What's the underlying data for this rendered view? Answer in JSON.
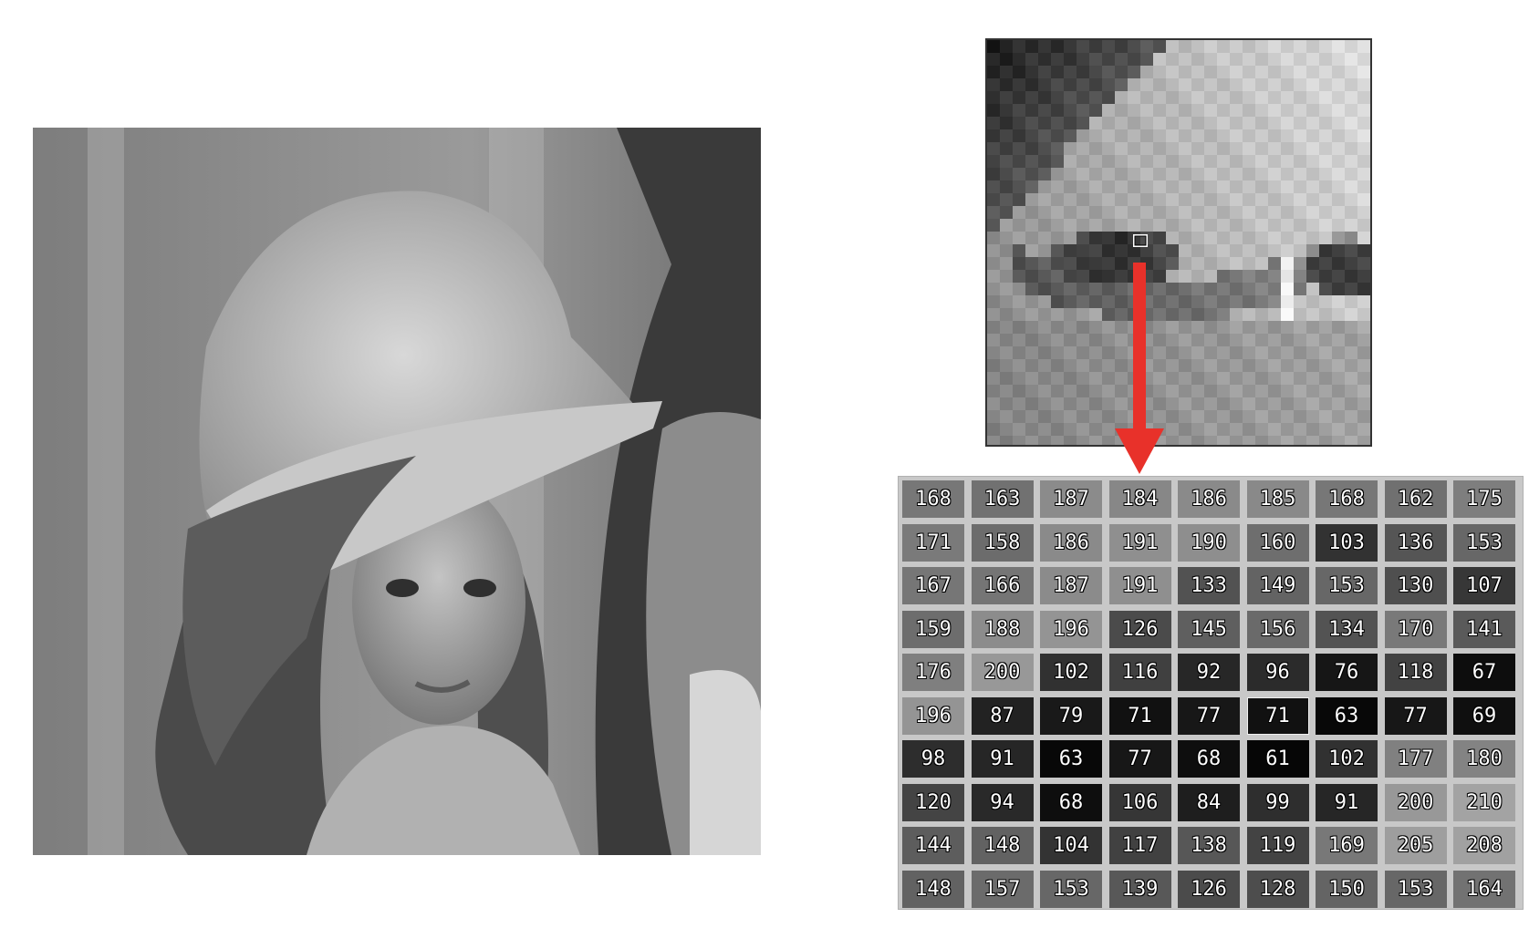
{
  "figure": {
    "photo_icon": "grayscale-portrait-photo",
    "zoom_icon": "zoomed-pixel-region",
    "arrow_color": "#e8312a",
    "marker_color": "#ffffff"
  },
  "pixel_grid": {
    "rows": [
      [
        168,
        163,
        187,
        184,
        186,
        185,
        168,
        162,
        175
      ],
      [
        171,
        158,
        186,
        191,
        190,
        160,
        103,
        136,
        153
      ],
      [
        167,
        166,
        187,
        191,
        133,
        149,
        153,
        130,
        107
      ],
      [
        159,
        188,
        196,
        126,
        145,
        156,
        134,
        170,
        141
      ],
      [
        176,
        200,
        102,
        116,
        92,
        96,
        76,
        118,
        67
      ],
      [
        196,
        87,
        79,
        71,
        77,
        71,
        63,
        77,
        69
      ],
      [
        98,
        91,
        63,
        77,
        68,
        61,
        102,
        177,
        180
      ],
      [
        120,
        94,
        68,
        106,
        84,
        99,
        91,
        200,
        210
      ],
      [
        144,
        148,
        104,
        117,
        138,
        119,
        169,
        205,
        208
      ],
      [
        148,
        157,
        153,
        139,
        126,
        128,
        150,
        153,
        164
      ]
    ],
    "selected_cell": [
      5,
      5
    ]
  }
}
